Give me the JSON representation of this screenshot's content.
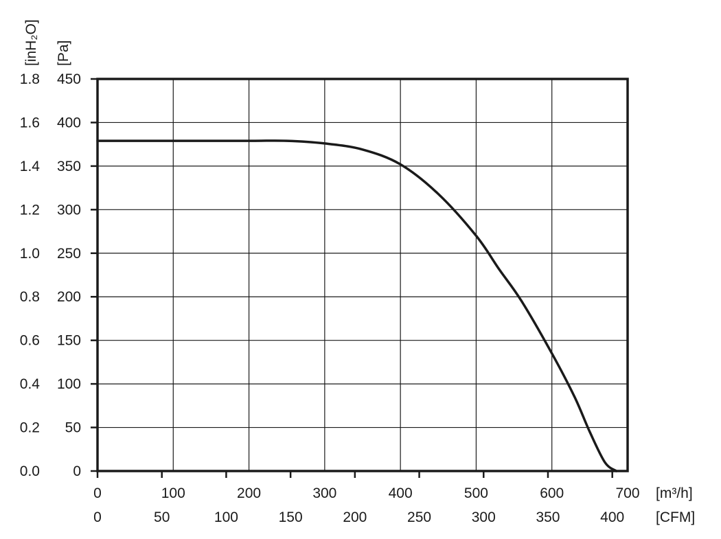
{
  "chart_data": {
    "type": "line",
    "title": "",
    "x_primary": {
      "unit_label": "[m³/h]",
      "range": [
        0,
        700
      ],
      "ticks": [
        "0",
        "100",
        "200",
        "300",
        "400",
        "500",
        "600",
        "700"
      ]
    },
    "x_secondary": {
      "unit_label": "[CFM]",
      "range": [
        0,
        411.9
      ],
      "ticks": [
        "0",
        "50",
        "100",
        "150",
        "200",
        "250",
        "300",
        "350",
        "400"
      ]
    },
    "y_primary": {
      "unit_label": "[Pa]",
      "range": [
        0,
        450
      ],
      "ticks": [
        "0",
        "50",
        "100",
        "150",
        "200",
        "250",
        "300",
        "350",
        "400",
        "450"
      ]
    },
    "y_secondary": {
      "unit_label": "[inH₂O]",
      "range": [
        0,
        1.8
      ],
      "ticks": [
        "0.0",
        "0.2",
        "0.4",
        "0.6",
        "0.8",
        "1.0",
        "1.2",
        "1.4",
        "1.6",
        "1.8"
      ]
    },
    "grid": true,
    "series": [
      {
        "x": [
          0,
          100,
          200,
          250,
          300,
          350,
          400,
          450,
          500,
          530,
          560,
          600,
          630,
          650,
          670,
          685
        ],
        "y": [
          379,
          379,
          379,
          379,
          376,
          369,
          352,
          318,
          270,
          232,
          195,
          135,
          85,
          45,
          10,
          0
        ]
      }
    ]
  }
}
